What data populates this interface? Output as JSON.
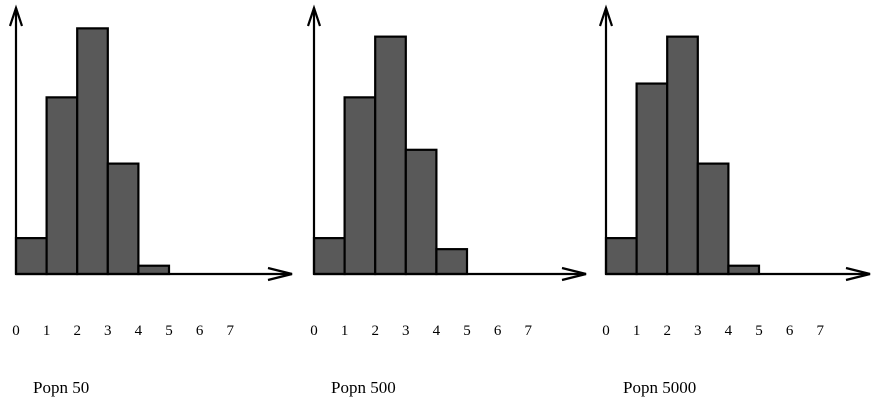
{
  "chart_data": [
    {
      "type": "bar",
      "caption": "Popn 50",
      "x_ticks": [
        "0",
        "1",
        "2",
        "3",
        "4",
        "5",
        "6",
        "7"
      ],
      "categories": [
        "0",
        "1",
        "2",
        "3",
        "4"
      ],
      "values": [
        0.13,
        0.64,
        0.89,
        0.4,
        0.03
      ],
      "xlim": [
        0,
        8
      ],
      "ylim": [
        0,
        1
      ],
      "color": "#595959"
    },
    {
      "type": "bar",
      "caption": "Popn 500",
      "x_ticks": [
        "0",
        "1",
        "2",
        "3",
        "4",
        "5",
        "6",
        "7"
      ],
      "categories": [
        "0",
        "1",
        "2",
        "3",
        "4"
      ],
      "values": [
        0.13,
        0.64,
        0.86,
        0.45,
        0.09
      ],
      "xlim": [
        0,
        8
      ],
      "ylim": [
        0,
        1
      ],
      "color": "#595959"
    },
    {
      "type": "bar",
      "caption": "Popn 5000",
      "x_ticks": [
        "0",
        "1",
        "2",
        "3",
        "4",
        "5",
        "6",
        "7"
      ],
      "categories": [
        "0",
        "1",
        "2",
        "3",
        "4"
      ],
      "values": [
        0.13,
        0.69,
        0.86,
        0.4,
        0.03
      ],
      "xlim": [
        0,
        8
      ],
      "ylim": [
        0,
        1
      ],
      "color": "#595959"
    }
  ]
}
